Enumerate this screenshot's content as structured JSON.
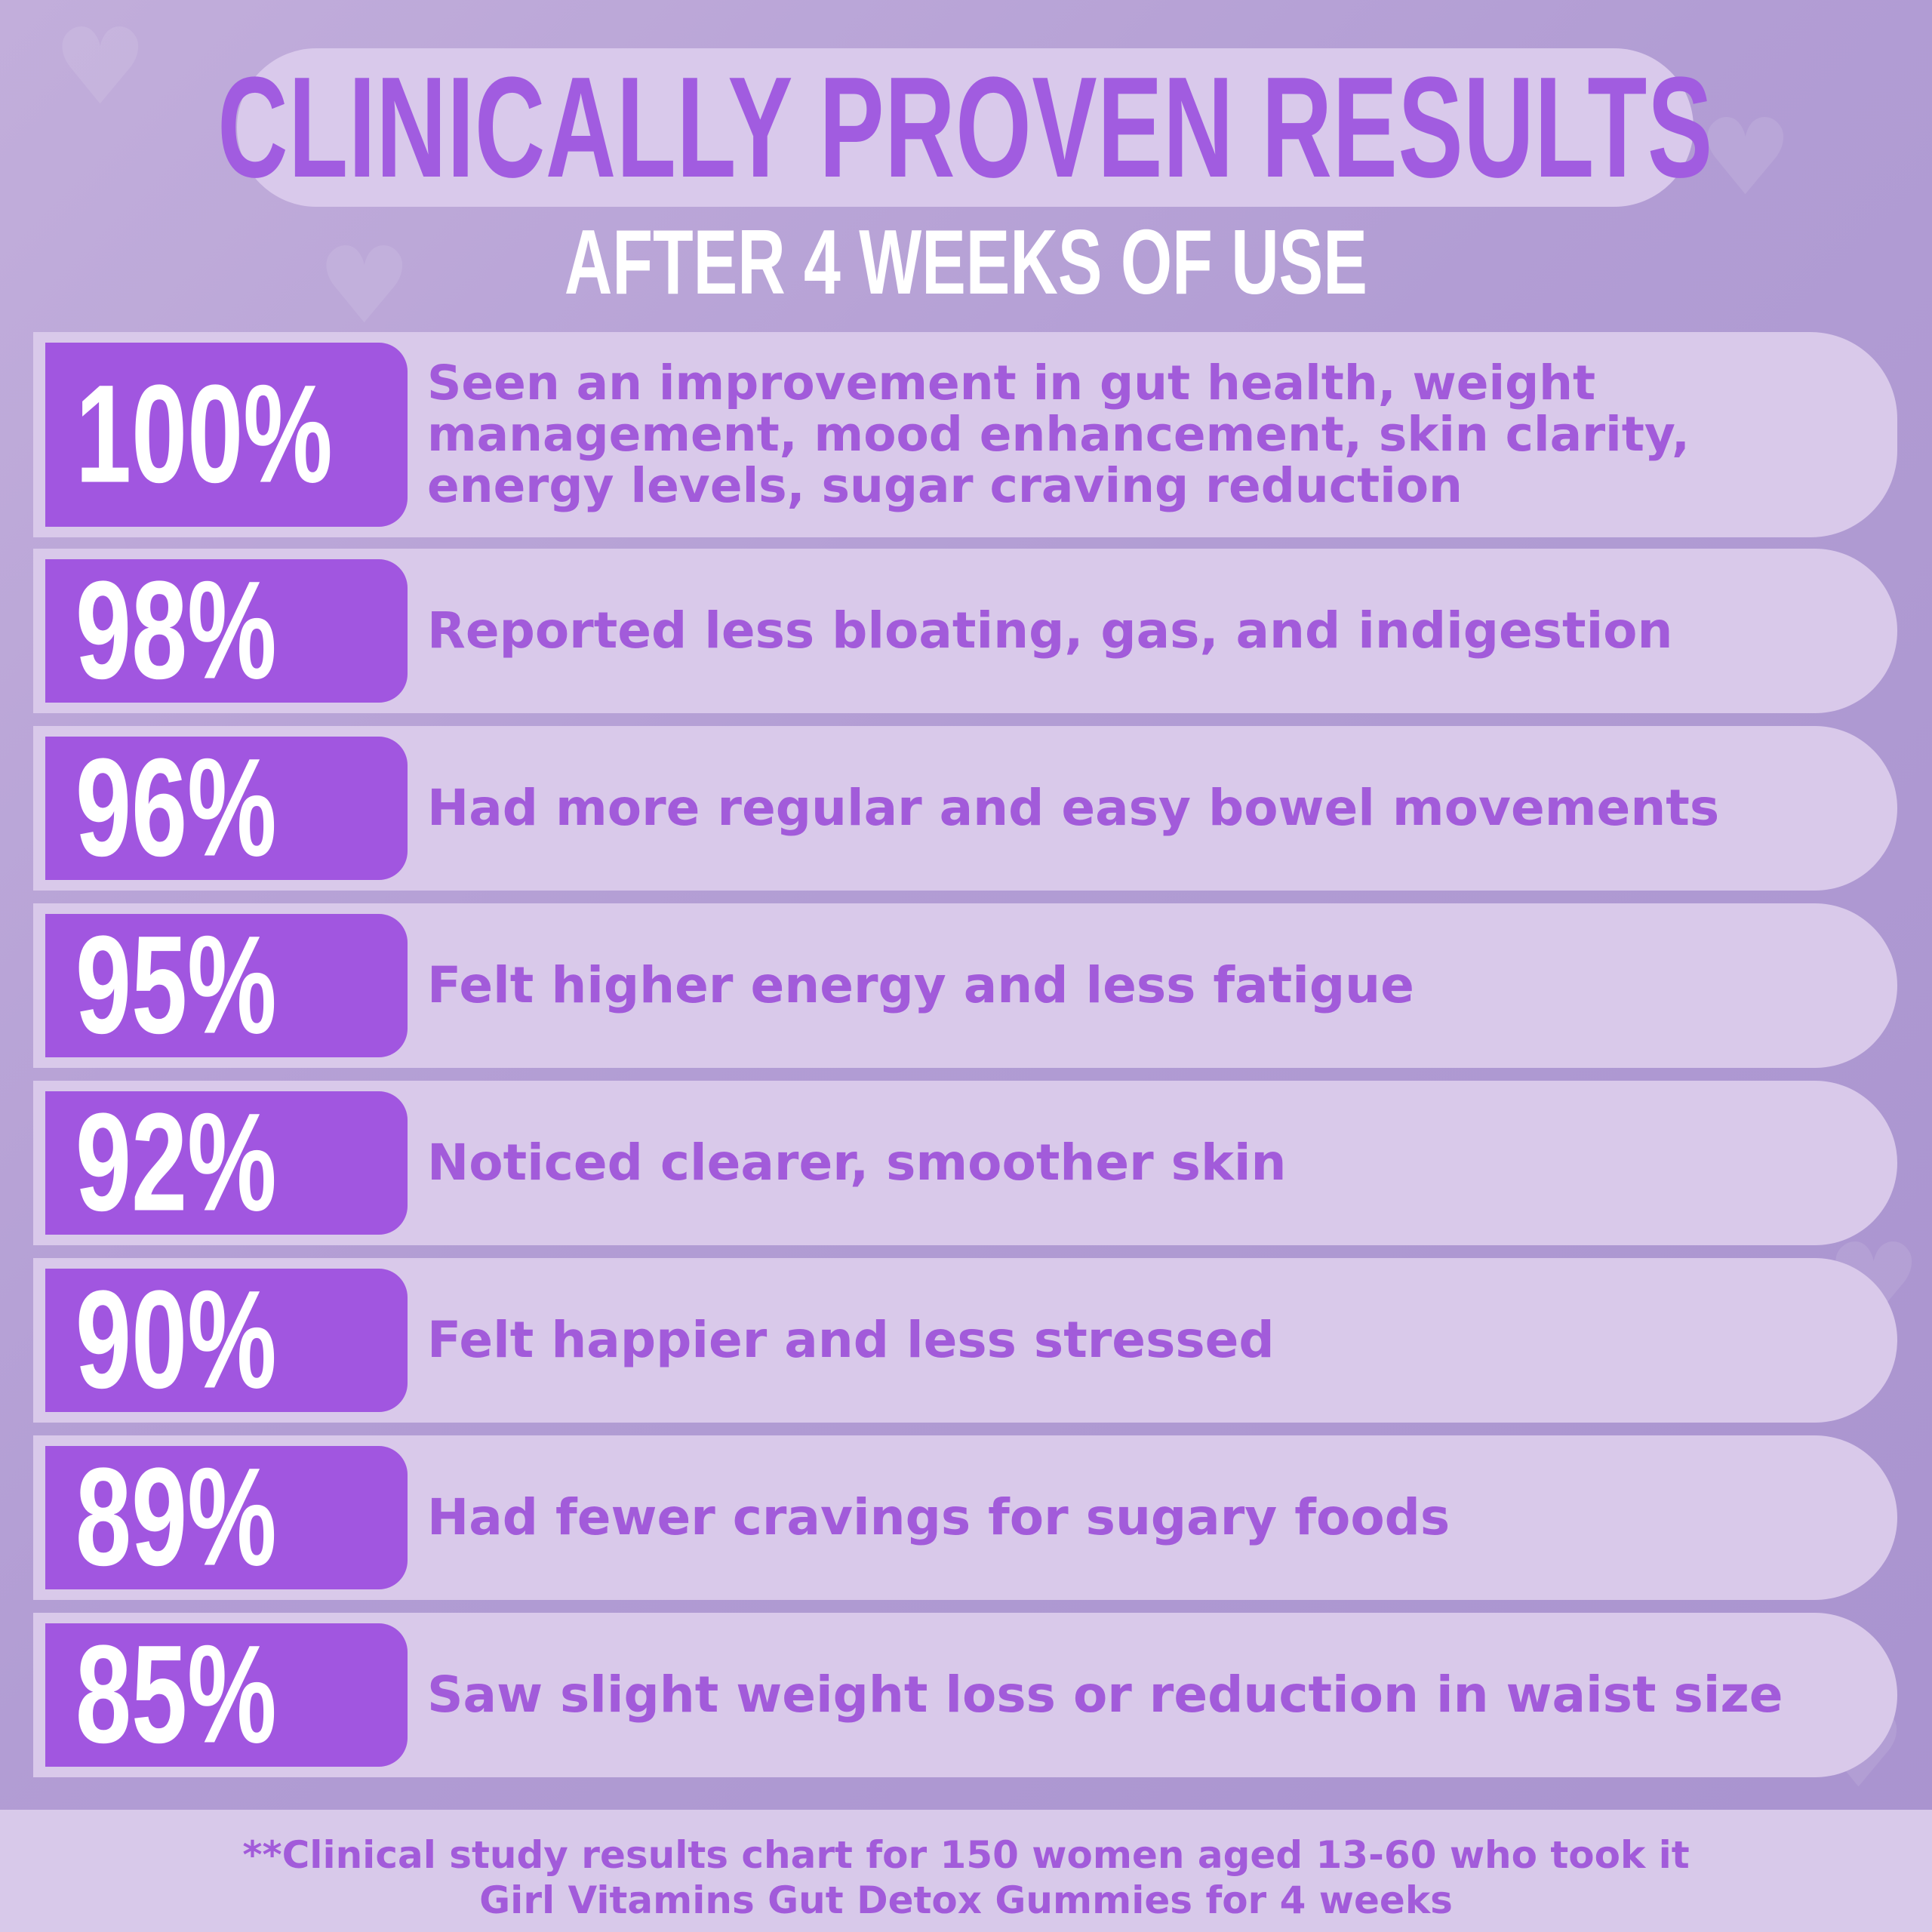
{
  "title": "CLINICALLY PROVEN RESULTS",
  "subtitle": "AFTER 4 WEEKS OF USE",
  "results": [
    {
      "percent": "100%",
      "value": 100,
      "lines": [
        "Seen an improvement in gut health, weight",
        "management, mood enhancement, skin clarity,",
        "energy levels, sugar craving reduction"
      ]
    },
    {
      "percent": "98%",
      "value": 98,
      "lines": [
        "Reported less bloating, gas, and indigestion"
      ]
    },
    {
      "percent": "96%",
      "value": 96,
      "lines": [
        "Had more regular and easy bowel movements"
      ]
    },
    {
      "percent": "95%",
      "value": 95,
      "lines": [
        "Felt higher energy and less fatigue"
      ]
    },
    {
      "percent": "92%",
      "value": 92,
      "lines": [
        "Noticed clearer, smoother skin"
      ]
    },
    {
      "percent": "90%",
      "value": 90,
      "lines": [
        "Felt happier and less stressed"
      ]
    },
    {
      "percent": "89%",
      "value": 89,
      "lines": [
        "Had fewer cravings for sugary foods"
      ]
    },
    {
      "percent": "85%",
      "value": 85,
      "lines": [
        "Saw slight weight loss or reduction in waist size"
      ]
    }
  ],
  "footer": {
    "line1": "**Clinical study results chart for 150 women aged 13-60 who took it",
    "line2": "Girl Vitamins Gut  Detox Gummies for 4 weeks"
  },
  "colors": {
    "accent_purple": "#a156e0",
    "text_purple": "#a25bda",
    "pill_lavender": "#d9c9ea",
    "background": "#b29dd4"
  },
  "decor_icon": "heart-icon"
}
